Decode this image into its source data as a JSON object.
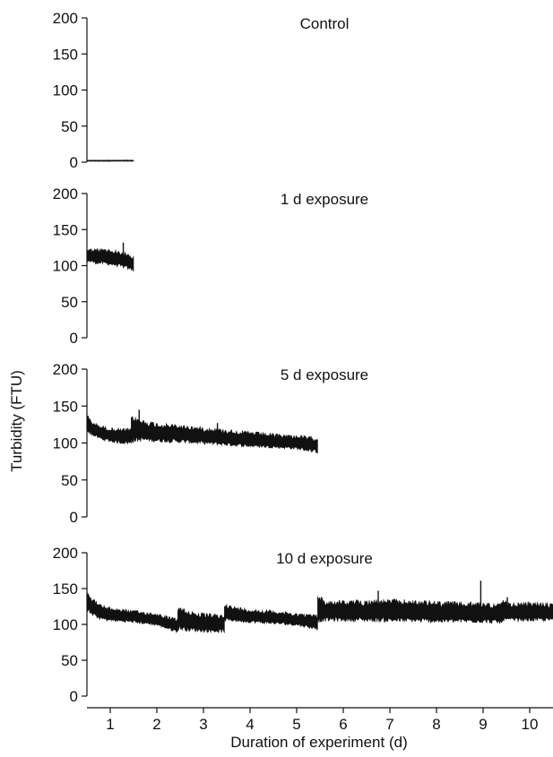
{
  "chart_data": {
    "type": "area",
    "ylabel": "Turbidity (FTU)",
    "xlabel": "Duration of experiment (d)",
    "xlim": [
      0.5,
      10.5
    ],
    "ylim": [
      0,
      200
    ],
    "x_ticks": [
      1,
      2,
      3,
      4,
      5,
      6,
      7,
      8,
      9,
      10
    ],
    "y_ticks": [
      0,
      50,
      100,
      150,
      200
    ],
    "grid": false,
    "series_color": "#111111",
    "panels": [
      {
        "title": "Control",
        "segments": [
          {
            "x": [
              0.5,
              1.0,
              1.5
            ],
            "low": [
              1,
              1,
              1
            ],
            "high": [
              3,
              3,
              3
            ]
          }
        ],
        "spikes": []
      },
      {
        "title": "1 d exposure",
        "segments": [
          {
            "x": [
              0.5,
              0.7,
              0.9,
              1.1,
              1.3,
              1.5
            ],
            "low": [
              105,
              102,
              101,
              99,
              96,
              92
            ],
            "high": [
              124,
              124,
              124,
              122,
              119,
              114
            ]
          }
        ],
        "spikes": [
          {
            "x": 1.28,
            "low": 100,
            "high": 132
          }
        ]
      },
      {
        "title": "5 d exposure",
        "segments": [
          {
            "x": [
              0.5,
              0.6,
              0.8,
              1.0,
              1.2,
              1.45
            ],
            "low": [
              114,
              110,
              104,
              101,
              99,
              98
            ],
            "high": [
              140,
              130,
              124,
              121,
              120,
              120
            ]
          },
          {
            "x": [
              1.45,
              1.7,
              2.0,
              2.5,
              3.0,
              3.5,
              4.0,
              4.5,
              5.0,
              5.45
            ],
            "low": [
              100,
              102,
              101,
              100,
              98,
              96,
              94,
              93,
              91,
              86
            ],
            "high": [
              138,
              132,
              128,
              125,
              122,
              119,
              116,
              113,
              111,
              108
            ]
          }
        ],
        "spikes": [
          {
            "x": 1.62,
            "low": 105,
            "high": 145
          },
          {
            "x": 3.3,
            "low": 100,
            "high": 127
          }
        ]
      },
      {
        "title": "10 d exposure",
        "segments": [
          {
            "x": [
              0.5,
              0.6,
              0.8,
              1.0,
              1.5,
              2.0,
              2.45
            ],
            "low": [
              118,
              112,
              106,
              104,
              102,
              98,
              88
            ],
            "high": [
              152,
              138,
              128,
              124,
              120,
              116,
              108
            ]
          },
          {
            "x": [
              2.45,
              2.7,
              3.0,
              3.45
            ],
            "low": [
              92,
              90,
              89,
              88
            ],
            "high": [
              126,
              120,
              116,
              114
            ]
          },
          {
            "x": [
              3.45,
              3.6,
              4.0,
              4.5,
              5.0,
              5.45
            ],
            "low": [
              104,
              104,
              102,
              100,
              98,
              92
            ],
            "high": [
              132,
              126,
              122,
              120,
              116,
              114
            ]
          },
          {
            "x": [
              5.45,
              5.6,
              6.0,
              7.0,
              8.0,
              9.0,
              9.4
            ],
            "low": [
              102,
              104,
              104,
              103,
              102,
              102,
              100
            ],
            "high": [
              146,
              134,
              134,
              136,
              133,
              131,
              130
            ]
          },
          {
            "x": [
              9.4,
              9.6,
              10.0,
              10.5
            ],
            "low": [
              104,
              104,
              104,
              104
            ],
            "high": [
              135,
              130,
              132,
              130
            ]
          }
        ],
        "spikes": [
          {
            "x": 6.75,
            "low": 110,
            "high": 147
          },
          {
            "x": 8.95,
            "low": 110,
            "high": 161
          },
          {
            "x": 9.52,
            "low": 108,
            "high": 138
          }
        ]
      }
    ]
  }
}
